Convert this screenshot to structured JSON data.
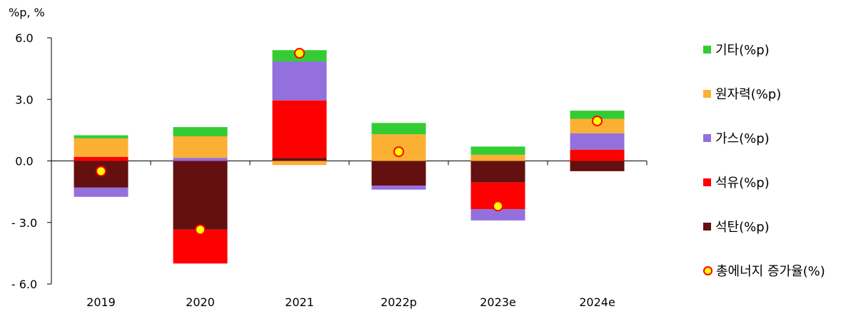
{
  "chart_data": {
    "type": "bar",
    "stacked": true,
    "unit_label": "%p, %",
    "categories": [
      "2019",
      "2020",
      "2021",
      "2022p",
      "2023e",
      "2024e"
    ],
    "ylim": [
      -6.0,
      6.0
    ],
    "yticks": [
      "6.0",
      "3.0",
      "0.0",
      "- 3.0",
      "- 6.0"
    ],
    "ytick_values": [
      6,
      3,
      0,
      -3,
      -6
    ],
    "series": [
      {
        "name": "석탄(%p)",
        "color": "#641010",
        "values": [
          -1.3,
          -3.35,
          0.15,
          -1.2,
          -1.05,
          -0.5
        ]
      },
      {
        "name": "석유(%p)",
        "color": "#ff0000",
        "values": [
          0.2,
          -1.65,
          2.8,
          0.0,
          -1.3,
          0.55
        ]
      },
      {
        "name": "가스(%p)",
        "color": "#9370db",
        "values": [
          -0.45,
          0.15,
          1.9,
          -0.2,
          -0.55,
          0.8
        ]
      },
      {
        "name": "원자력(%p)",
        "color": "#fbb034",
        "values": [
          0.9,
          1.05,
          -0.2,
          1.3,
          0.3,
          0.7
        ]
      },
      {
        "name": "기타(%p)",
        "color": "#33cc33",
        "values": [
          0.15,
          0.45,
          0.55,
          0.55,
          0.4,
          0.4
        ]
      }
    ],
    "line_series": {
      "name": "총에너지 증가율(%)",
      "values": [
        -0.5,
        -3.35,
        5.25,
        0.45,
        -2.2,
        1.95
      ]
    },
    "legend_order": [
      "기타(%p)",
      "원자력(%p)",
      "가스(%p)",
      "석유(%p)",
      "석탄(%p)",
      "총에너지 증가율(%)"
    ],
    "legend_position": "right",
    "grid": false
  }
}
